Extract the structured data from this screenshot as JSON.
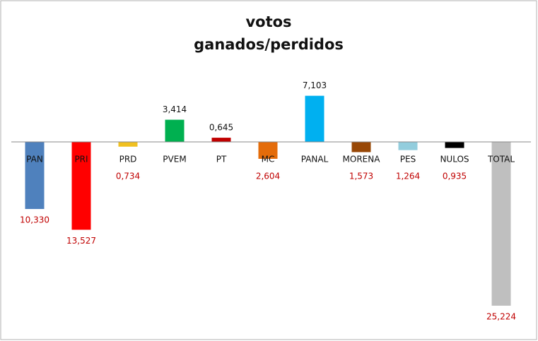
{
  "chart_data": {
    "type": "bar",
    "title": [
      "votos",
      "ganados/perdidos"
    ],
    "categories": [
      "PAN",
      "PRI",
      "PRD",
      "PVEM",
      "PT",
      "MC",
      "PANAL",
      "MORENA",
      "PES",
      "NULOS",
      "TOTAL"
    ],
    "values": [
      -10.33,
      -13.527,
      -0.734,
      3.414,
      0.645,
      -2.604,
      7.103,
      -1.573,
      -1.264,
      -0.935,
      -25.224
    ],
    "value_labels": [
      "10,330",
      "13,527",
      "0,734",
      "3,414",
      "0,645",
      "2,604",
      "7,103",
      "1,573",
      "1,264",
      "0,935",
      "25,224"
    ],
    "colors": [
      "#4f81bd",
      "#ff0000",
      "#f0c020",
      "#00b050",
      "#c00000",
      "#e46c0a",
      "#00b0f0",
      "#984807",
      "#93cddd",
      "#000000",
      "#bfbfbf"
    ],
    "positive_label_color": "#111111",
    "negative_label_color": "#c00000"
  }
}
